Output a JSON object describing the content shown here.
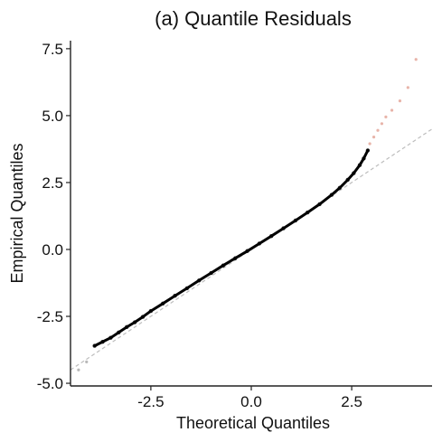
{
  "chart_data": {
    "type": "scatter",
    "title": "(a) Quantile Residuals",
    "xlabel": "Theoretical Quantiles",
    "ylabel": "Empirical Quantiles",
    "xlim": [
      -4.5,
      4.5
    ],
    "ylim": [
      -5.1,
      7.8
    ],
    "xticks": [
      -2.5,
      0.0,
      2.5
    ],
    "xtick_labels": [
      "-2.5",
      "0.0",
      "2.5"
    ],
    "yticks": [
      -5.0,
      -2.5,
      0.0,
      2.5,
      5.0,
      7.5
    ],
    "ytick_labels": [
      "-5.0",
      "-2.5",
      "0.0",
      "2.5",
      "5.0",
      "7.5"
    ],
    "grid": false,
    "reference_line": {
      "slope": 1.0,
      "intercept": 0.0,
      "color": "#bdbdbd",
      "style": "dashed"
    },
    "series": [
      {
        "color": "#000000",
        "x": [
          -3.9,
          -3.7,
          -3.5,
          -3.3,
          -3.1,
          -2.9,
          -2.7,
          -2.5,
          -2.2,
          -1.9,
          -1.6,
          -1.3,
          -1.0,
          -0.7,
          -0.4,
          -0.1,
          0.2,
          0.5,
          0.8,
          1.1,
          1.4,
          1.7,
          2.0,
          2.2,
          2.4,
          2.55,
          2.7,
          2.8,
          2.9
        ],
        "y": [
          -3.6,
          -3.45,
          -3.3,
          -3.1,
          -2.9,
          -2.72,
          -2.52,
          -2.3,
          -2.02,
          -1.73,
          -1.45,
          -1.16,
          -0.88,
          -0.6,
          -0.33,
          -0.06,
          0.22,
          0.5,
          0.79,
          1.08,
          1.38,
          1.69,
          2.04,
          2.3,
          2.6,
          2.85,
          3.15,
          3.4,
          3.7
        ]
      },
      {
        "color": "#d9826f",
        "x": [
          2.95,
          3.05,
          3.15,
          3.25,
          3.35,
          3.5,
          3.7,
          3.9,
          4.1
        ],
        "y": [
          3.95,
          4.2,
          4.45,
          4.7,
          4.95,
          5.2,
          5.55,
          6.05,
          7.1
        ]
      },
      {
        "color": "#888888",
        "x": [
          -4.3,
          -4.1
        ],
        "y": [
          -4.5,
          -4.2
        ]
      }
    ]
  }
}
